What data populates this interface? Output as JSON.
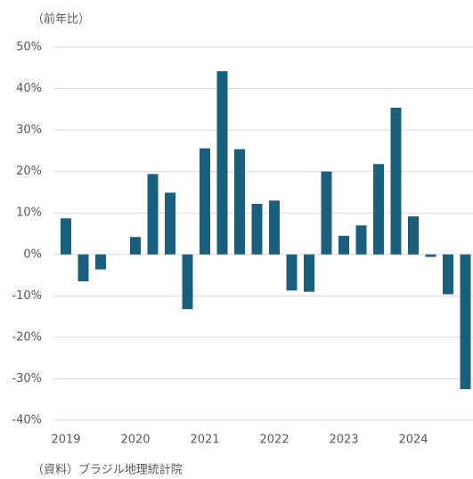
{
  "chart_data": {
    "type": "bar",
    "y_axis_label": "（前年比）",
    "source": "（資料）ブラジル地理統計院",
    "categories": [
      "2019",
      null,
      null,
      null,
      "2020",
      null,
      null,
      null,
      "2021",
      null,
      null,
      null,
      "2022",
      null,
      null,
      null,
      "2023",
      null,
      null,
      null,
      "2024",
      null,
      null,
      null
    ],
    "values": [
      8.7,
      -6.5,
      -3.6,
      null,
      4.2,
      19.4,
      14.9,
      -13.2,
      25.6,
      44.2,
      25.4,
      12.2,
      13.0,
      -8.7,
      -9.0,
      20.0,
      4.5,
      7.0,
      21.8,
      35.4,
      9.2,
      -0.6,
      -9.6,
      -32.5
    ],
    "color": "#1b5f7e",
    "ylim": [
      -40,
      50
    ],
    "yticks": [
      {
        "value": 50,
        "label": "50%"
      },
      {
        "value": 40,
        "label": "40%"
      },
      {
        "value": 30,
        "label": "30%"
      },
      {
        "value": 20,
        "label": "20%"
      },
      {
        "value": 10,
        "label": "10%"
      },
      {
        "value": 0,
        "label": "0%"
      },
      {
        "value": -10,
        "label": "-10%"
      },
      {
        "value": -20,
        "label": "-20%"
      },
      {
        "value": -30,
        "label": "-30%"
      },
      {
        "value": -40,
        "label": "-40%"
      }
    ],
    "grid": true
  }
}
